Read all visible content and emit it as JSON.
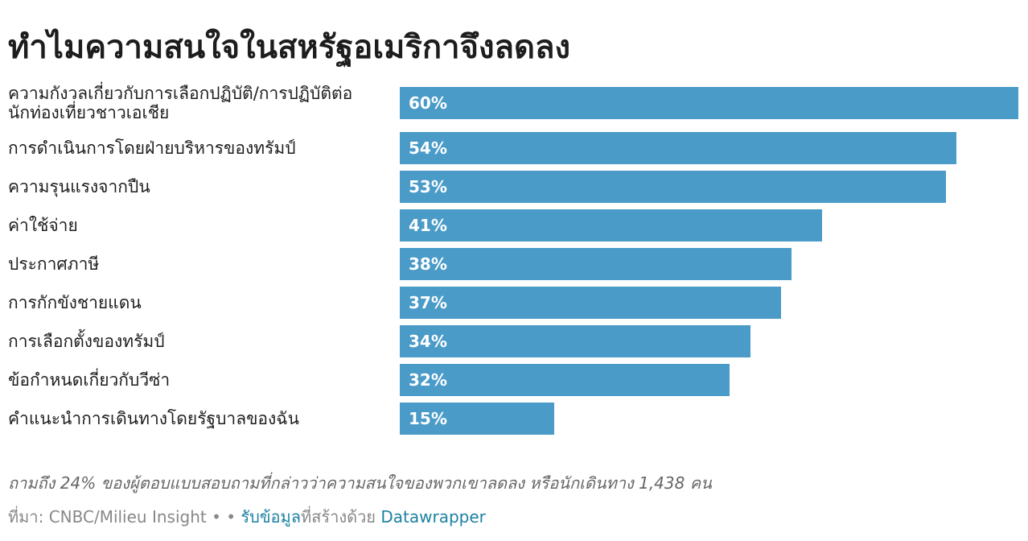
{
  "chart_data": {
    "type": "bar",
    "title": "ทำไมความสนใจในสหรัฐอเมริกาจึงลดลง",
    "categories": [
      "ความกังวลเกี่ยวกับการเลือกปฏิบัติ/การปฏิบัติต่อ\nนักท่องเที่ยวชาวเอเชีย",
      "การดำเนินการโดยฝ่ายบริหารของทรัมป์",
      "ความรุนแรงจากปืน",
      "ค่าใช้จ่าย",
      "ประกาศภาษี",
      "การกักขังชายแดน",
      "การเลือกตั้งของทรัมป์",
      "ข้อกำหนดเกี่ยวกับวีซ่า",
      "คำแนะนำการเดินทางโดยรัฐบาลของฉัน"
    ],
    "values": [
      60,
      54,
      53,
      41,
      38,
      37,
      34,
      32,
      15
    ],
    "value_labels": [
      "60%",
      "54%",
      "53%",
      "41%",
      "38%",
      "37%",
      "34%",
      "32%",
      "15%"
    ],
    "color": "#4a9bc8",
    "note": "ถามถึง 24% ของผู้ตอบแบบสอบถามที่กล่าวว่าความสนใจของพวกเขาลดลง หรือนักเดินทาง 1,438 คน",
    "source": "ที่มา: CNBC/Milieu Insight",
    "separator": "• •",
    "get_data": "รับข้อมูล",
    "created_with": "ที่สร้างด้วย",
    "tool": "Datawrapper"
  }
}
